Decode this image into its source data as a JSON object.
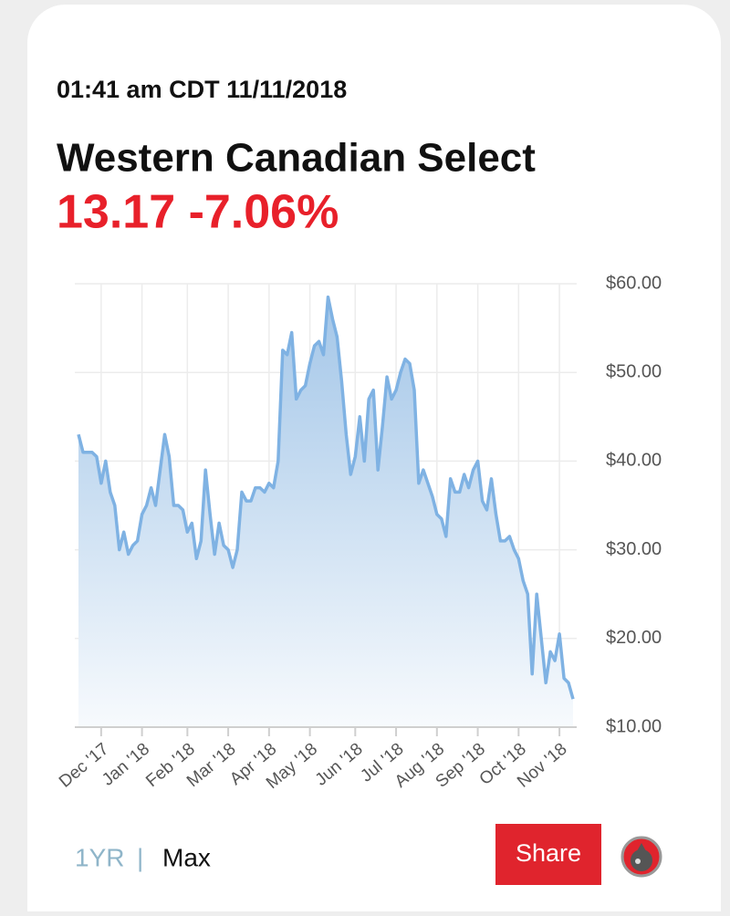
{
  "header": {
    "timestamp": "01:41 am CDT 11/11/2018",
    "price_change": "13.17 -7.06%"
  },
  "controls": {
    "range_1yr": "1YR",
    "separator": "|",
    "range_max": "Max",
    "share": "Share"
  },
  "chart_data": {
    "type": "line",
    "title": "Western Canadian Select",
    "categories": [
      null,
      null,
      null,
      null,
      null,
      "Dec '17",
      null,
      null,
      null,
      null,
      null,
      null,
      null,
      null,
      "Jan '18",
      null,
      null,
      null,
      null,
      null,
      null,
      null,
      null,
      null,
      "Feb '18",
      null,
      null,
      null,
      null,
      null,
      null,
      null,
      null,
      "Mar '18",
      null,
      null,
      null,
      null,
      null,
      null,
      null,
      null,
      "Apr '18",
      null,
      null,
      null,
      null,
      null,
      null,
      null,
      null,
      "May '18",
      null,
      null,
      null,
      null,
      null,
      null,
      null,
      null,
      null,
      "Jun '18",
      null,
      null,
      null,
      null,
      null,
      null,
      null,
      null,
      "Jul '18",
      null,
      null,
      null,
      null,
      null,
      null,
      null,
      null,
      "Aug '18",
      null,
      null,
      null,
      null,
      null,
      null,
      null,
      null,
      "Sep '18",
      null,
      null,
      null,
      null,
      null,
      null,
      null,
      null,
      "Oct '18",
      null,
      null,
      null,
      null,
      null,
      null,
      null,
      null,
      "Nov '18",
      null,
      null,
      null
    ],
    "values": [
      43,
      41,
      41,
      41,
      40.5,
      37.5,
      40,
      36.5,
      35,
      30,
      32,
      29.5,
      30.5,
      31,
      34,
      35,
      37,
      35,
      39,
      43,
      40.5,
      35,
      35,
      34.5,
      32,
      33,
      29,
      31,
      39,
      34,
      29.5,
      33,
      30.5,
      30,
      28,
      30,
      36.5,
      35.5,
      35.5,
      37,
      37,
      36.5,
      37.5,
      37,
      40,
      52.5,
      52,
      54.5,
      47,
      48,
      48.5,
      51,
      53,
      53.5,
      52,
      58.5,
      56,
      54,
      49,
      43,
      38.5,
      40.5,
      45,
      40,
      47,
      48,
      39,
      44,
      49.5,
      47,
      48,
      50,
      51.5,
      51,
      48,
      37.5,
      39,
      37.5,
      36,
      34,
      33.5,
      31.5,
      38,
      36.5,
      36.5,
      38.5,
      37,
      39,
      40,
      35.5,
      34.5,
      38,
      34,
      31,
      31,
      31.5,
      30,
      29,
      26.5,
      25,
      16,
      25,
      20,
      15,
      18.5,
      17.5,
      20.5,
      15.5,
      15,
      13.17
    ],
    "color": "#7fb2e3",
    "ylim": [
      10,
      60
    ],
    "yticks": [
      {
        "value": 10,
        "label": "$10.00"
      },
      {
        "value": 20,
        "label": "$20.00"
      },
      {
        "value": 30,
        "label": "$30.00"
      },
      {
        "value": 40,
        "label": "$40.00"
      },
      {
        "value": 50,
        "label": "$50.00"
      },
      {
        "value": 60,
        "label": "$60.00"
      }
    ],
    "grid": true
  }
}
